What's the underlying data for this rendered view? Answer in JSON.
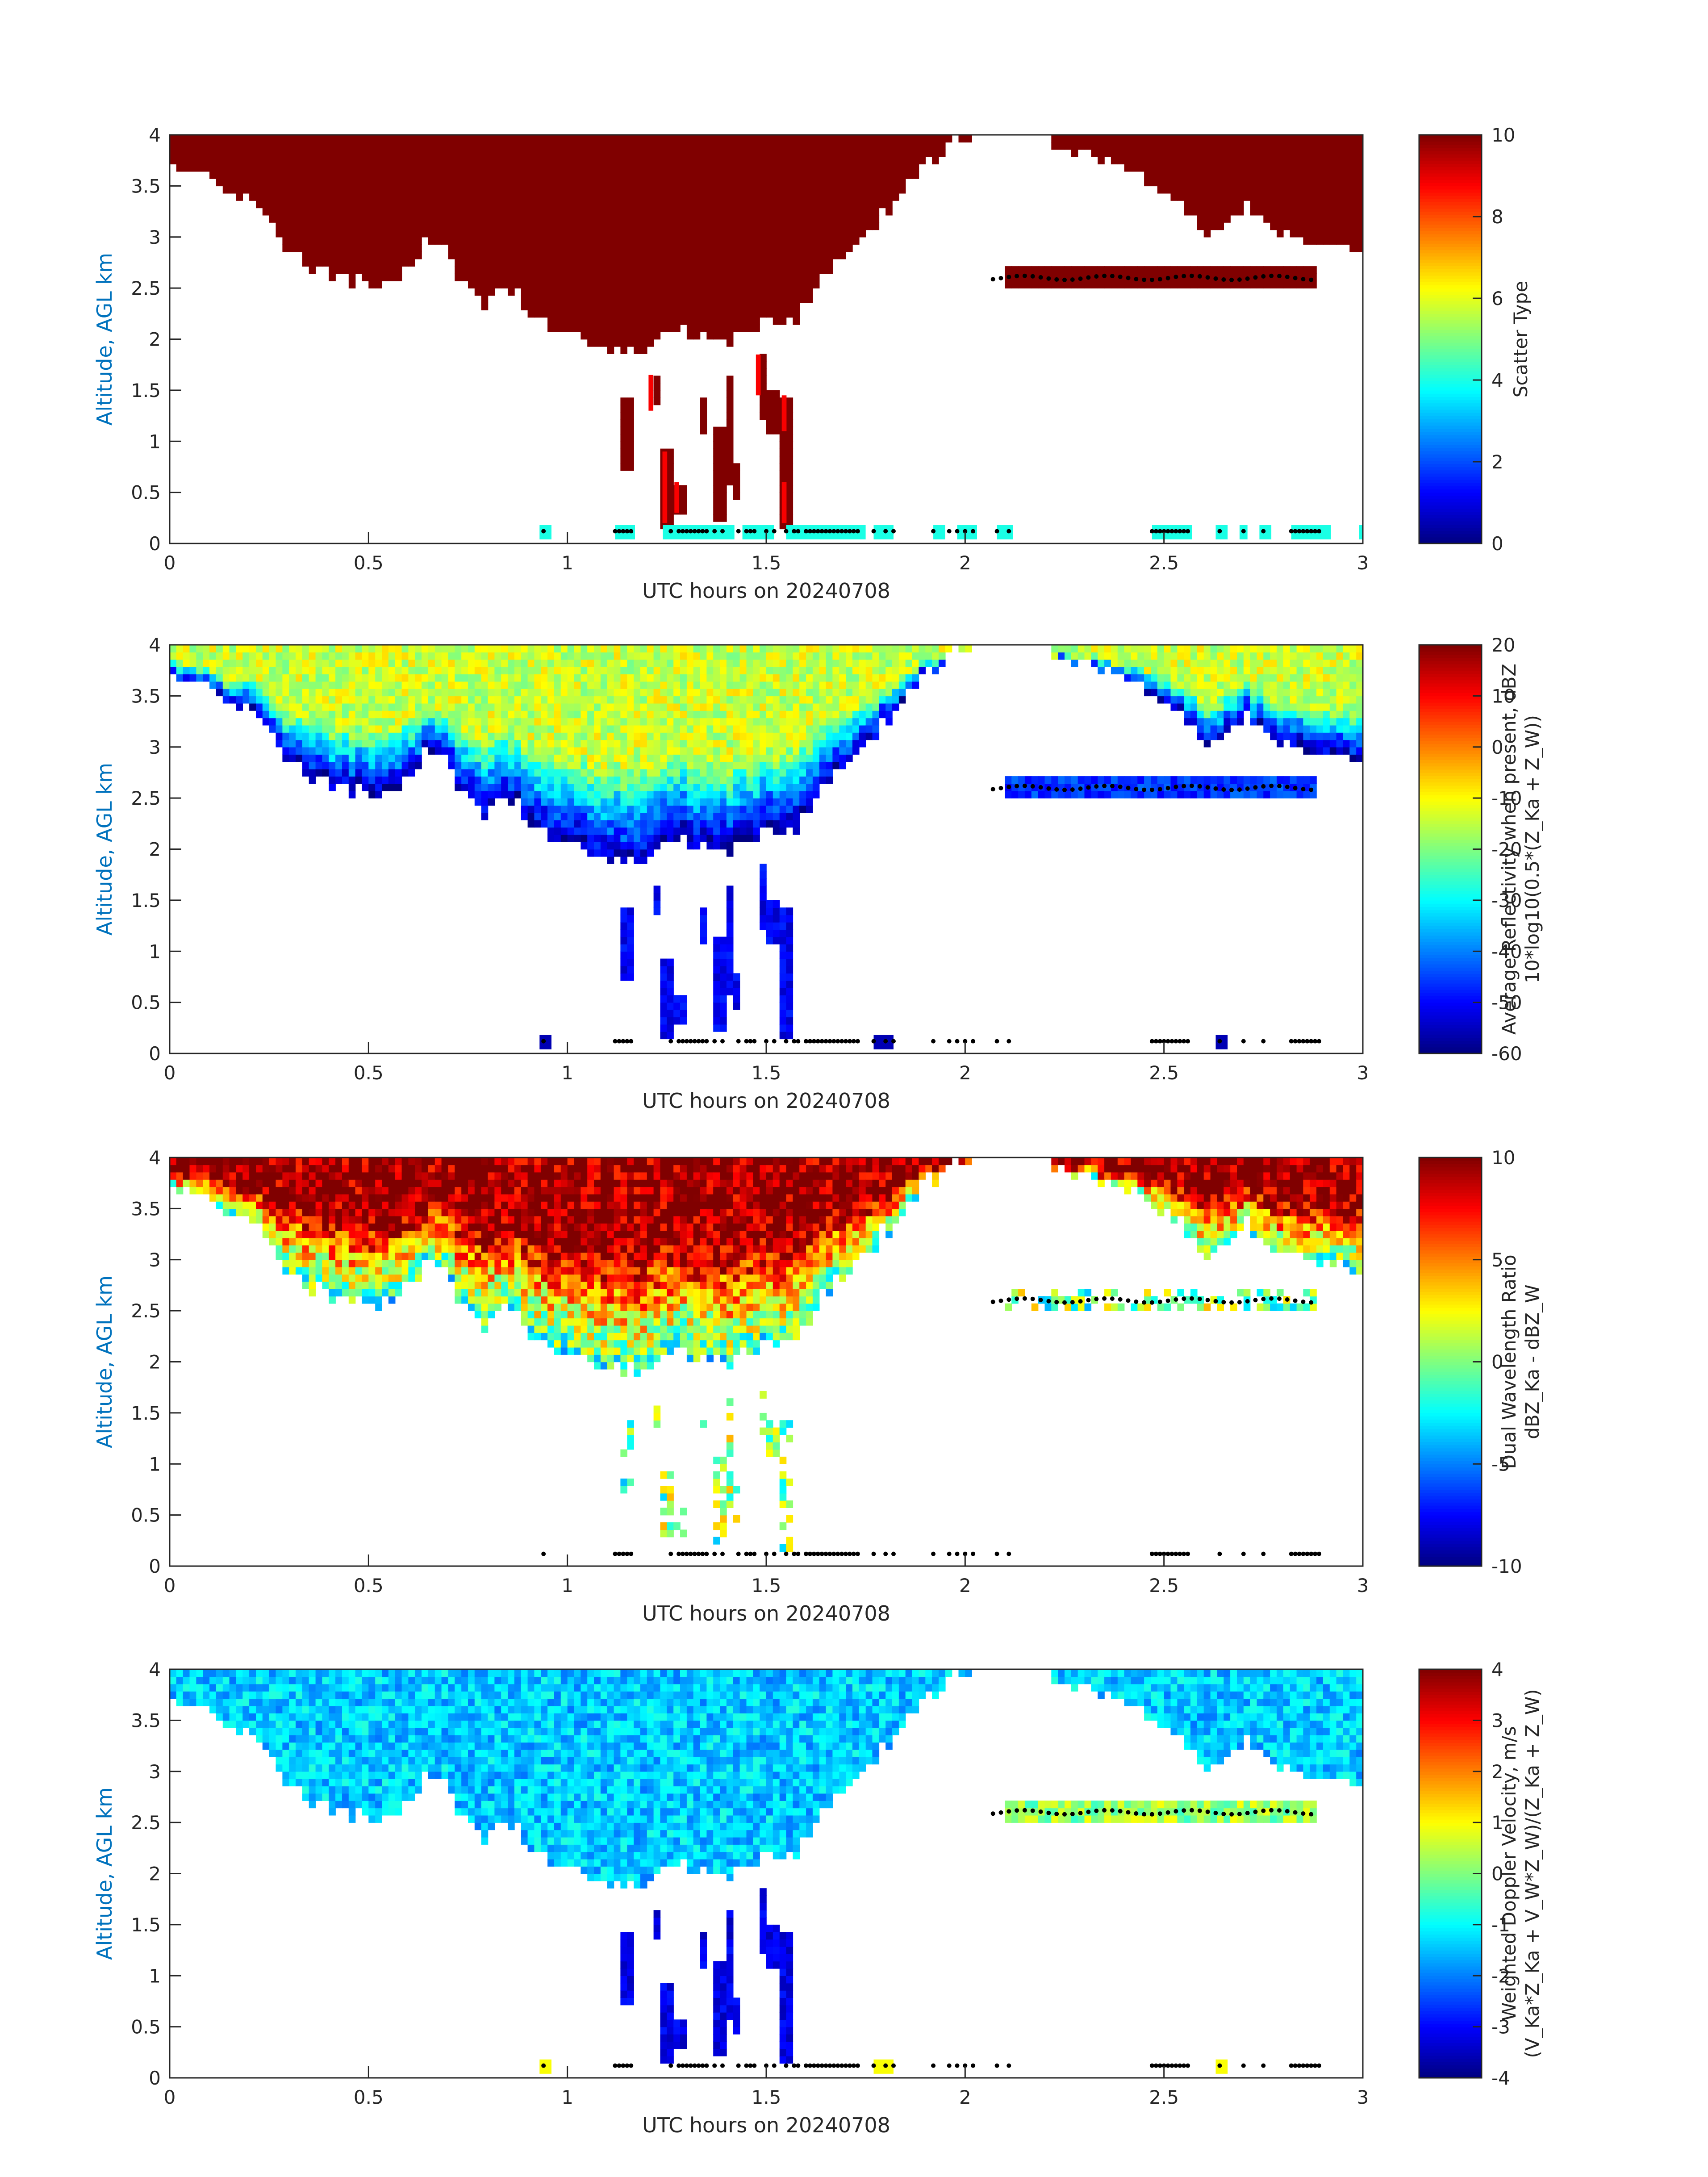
{
  "chart_data": [
    {
      "type": "heatmap",
      "xlabel": "UTC hours on 20240708",
      "ylabel": "Altitude, AGL km",
      "xlim": [
        0,
        3
      ],
      "ylim": [
        0,
        4
      ],
      "xticks": [
        "0",
        "0.5",
        "1",
        "1.5",
        "2",
        "2.5",
        "3"
      ],
      "yticks": [
        "0",
        "0.5",
        "1",
        "1.5",
        "2",
        "2.5",
        "3",
        "3.5",
        "4"
      ],
      "colorbar": {
        "label_lines": [
          "Scatter Type"
        ],
        "range": [
          0,
          10
        ],
        "ticks": [
          "0",
          "2",
          "4",
          "6",
          "8",
          "10"
        ],
        "colormap": "jet"
      },
      "field": "scatter",
      "dominant_value": 4,
      "highlight_value": 8.8
    },
    {
      "type": "heatmap",
      "xlabel": "UTC hours on 20240708",
      "ylabel": "Altitude, AGL km",
      "xlim": [
        0,
        3
      ],
      "ylim": [
        0,
        4
      ],
      "xticks": [
        "0",
        "0.5",
        "1",
        "1.5",
        "2",
        "2.5",
        "3"
      ],
      "yticks": [
        "0",
        "0.5",
        "1",
        "1.5",
        "2",
        "2.5",
        "3",
        "3.5",
        "4"
      ],
      "colorbar": {
        "label_lines": [
          "Average Reflectivity when present, dBZ",
          "10*log10(0.5*(Z_Ka + Z_W))"
        ],
        "range": [
          -60,
          20
        ],
        "ticks": [
          "-60",
          "-50",
          "-40",
          "-30",
          "-20",
          "-10",
          "0",
          "10",
          "20"
        ],
        "colormap": "jet"
      },
      "field": "reflectivity"
    },
    {
      "type": "heatmap",
      "xlabel": "UTC hours on 20240708",
      "ylabel": "Altitude, AGL km",
      "xlim": [
        0,
        3
      ],
      "ylim": [
        0,
        4
      ],
      "xticks": [
        "0",
        "0.5",
        "1",
        "1.5",
        "2",
        "2.5",
        "3"
      ],
      "yticks": [
        "0",
        "0.5",
        "1",
        "1.5",
        "2",
        "2.5",
        "3",
        "3.5",
        "4"
      ],
      "colorbar": {
        "label_lines": [
          "Dual Wavelength Ratio",
          "dBZ_Ka - dBZ_W"
        ],
        "range": [
          -10,
          10
        ],
        "ticks": [
          "-10",
          "-5",
          "0",
          "5",
          "10"
        ],
        "colormap": "jet"
      },
      "field": "dwr"
    },
    {
      "type": "heatmap",
      "xlabel": "UTC hours on 20240708",
      "ylabel": "Altitude, AGL km",
      "xlim": [
        0,
        3
      ],
      "ylim": [
        0,
        4
      ],
      "xticks": [
        "0",
        "0.5",
        "1",
        "1.5",
        "2",
        "2.5",
        "3"
      ],
      "yticks": [
        "0",
        "0.5",
        "1",
        "1.5",
        "2",
        "2.5",
        "3",
        "3.5",
        "4"
      ],
      "colorbar": {
        "label_lines": [
          "Weighted Doppler Velocity, m/s",
          "(V_Ka*Z_Ka + V_W*Z_W)/(Z_Ka + Z_W)"
        ],
        "range": [
          -4,
          4
        ],
        "ticks": [
          "-4",
          "-3",
          "-2",
          "-1",
          "0",
          "1",
          "2",
          "3",
          "4"
        ],
        "colormap": "jet"
      },
      "field": "velocity"
    }
  ],
  "cloud_top_km": [
    [
      0.0,
      3.7
    ],
    [
      0.05,
      3.6
    ],
    [
      0.1,
      3.55
    ],
    [
      0.15,
      3.45
    ],
    [
      0.2,
      3.35
    ],
    [
      0.25,
      3.15
    ],
    [
      0.3,
      2.85
    ],
    [
      0.35,
      2.75
    ],
    [
      0.4,
      2.65
    ],
    [
      0.45,
      2.6
    ],
    [
      0.5,
      2.55
    ],
    [
      0.55,
      2.55
    ],
    [
      0.6,
      2.7
    ],
    [
      0.65,
      3.0
    ],
    [
      0.7,
      2.8
    ],
    [
      0.75,
      2.45
    ],
    [
      0.8,
      2.35
    ],
    [
      0.85,
      2.5
    ],
    [
      0.9,
      2.3
    ],
    [
      0.95,
      2.1
    ],
    [
      1.0,
      2.05
    ],
    [
      1.05,
      2.0
    ],
    [
      1.1,
      1.95
    ],
    [
      1.15,
      1.85
    ],
    [
      1.2,
      1.95
    ],
    [
      1.25,
      2.05
    ],
    [
      1.3,
      2.1
    ],
    [
      1.35,
      2.05
    ],
    [
      1.4,
      1.95
    ],
    [
      1.45,
      2.05
    ],
    [
      1.5,
      2.15
    ],
    [
      1.55,
      2.1
    ],
    [
      1.6,
      2.35
    ],
    [
      1.65,
      2.65
    ],
    [
      1.7,
      2.85
    ],
    [
      1.75,
      3.05
    ],
    [
      1.8,
      3.25
    ],
    [
      1.85,
      3.5
    ],
    [
      1.9,
      3.7
    ],
    [
      1.95,
      3.85
    ],
    [
      2.0,
      3.95
    ],
    [
      2.05,
      4.0
    ]
  ],
  "cloud_top_right_km": [
    [
      2.22,
      3.9
    ],
    [
      2.3,
      3.8
    ],
    [
      2.4,
      3.65
    ],
    [
      2.5,
      3.45
    ],
    [
      2.55,
      3.25
    ],
    [
      2.6,
      3.05
    ],
    [
      2.65,
      3.1
    ],
    [
      2.7,
      3.35
    ],
    [
      2.75,
      3.15
    ],
    [
      2.8,
      3.05
    ],
    [
      2.85,
      3.0
    ],
    [
      2.9,
      2.95
    ],
    [
      2.95,
      2.9
    ],
    [
      3.0,
      2.9
    ]
  ],
  "elevated_layer": {
    "x_start": 2.07,
    "x_end": 2.88,
    "bottom_km": 2.52,
    "top_km": 2.68
  },
  "precip_columns": [
    {
      "x": 1.145,
      "bottom_km": 0.75,
      "top_km": 1.4
    },
    {
      "x": 1.225,
      "bottom_km": 1.35,
      "top_km": 1.65
    },
    {
      "x": 1.245,
      "bottom_km": 0.15,
      "top_km": 0.95
    },
    {
      "x": 1.285,
      "bottom_km": 0.3,
      "top_km": 0.6
    },
    {
      "x": 1.34,
      "bottom_km": 1.05,
      "top_km": 1.45
    },
    {
      "x": 1.38,
      "bottom_km": 0.25,
      "top_km": 1.15
    },
    {
      "x": 1.405,
      "bottom_km": 0.55,
      "top_km": 1.65
    },
    {
      "x": 1.425,
      "bottom_km": 0.45,
      "top_km": 0.8
    },
    {
      "x": 1.49,
      "bottom_km": 1.25,
      "top_km": 1.85
    },
    {
      "x": 1.515,
      "bottom_km": 1.1,
      "top_km": 1.5
    },
    {
      "x": 1.55,
      "bottom_km": 0.15,
      "top_km": 1.4
    }
  ],
  "red_columns": [
    {
      "x": 1.21,
      "bottom_km": 1.3,
      "top_km": 1.65
    },
    {
      "x": 1.245,
      "bottom_km": 0.2,
      "top_km": 0.9
    },
    {
      "x": 1.275,
      "bottom_km": 0.3,
      "top_km": 0.6
    },
    {
      "x": 1.48,
      "bottom_km": 1.45,
      "top_km": 1.85
    },
    {
      "x": 1.545,
      "bottom_km": 0.2,
      "top_km": 0.6
    },
    {
      "x": 1.545,
      "bottom_km": 1.1,
      "top_km": 1.45
    }
  ],
  "surface_segments": [
    [
      0.93,
      0.96
    ],
    [
      1.12,
      1.17
    ],
    [
      1.24,
      1.42
    ],
    [
      1.44,
      1.52
    ],
    [
      1.55,
      1.75
    ],
    [
      1.77,
      1.82
    ],
    [
      1.92,
      1.95
    ],
    [
      1.98,
      2.03
    ],
    [
      2.08,
      2.12
    ],
    [
      2.47,
      2.57
    ],
    [
      2.63,
      2.66
    ],
    [
      2.69,
      2.71
    ],
    [
      2.74,
      2.77
    ],
    [
      2.82,
      2.92
    ],
    [
      2.99,
      3.0
    ]
  ],
  "surface_dots": [
    0.94,
    1.12,
    1.13,
    1.14,
    1.15,
    1.16,
    1.26,
    1.28,
    1.29,
    1.3,
    1.31,
    1.32,
    1.33,
    1.34,
    1.35,
    1.37,
    1.39,
    1.43,
    1.45,
    1.46,
    1.47,
    1.5,
    1.52,
    1.55,
    1.57,
    1.58,
    1.6,
    1.61,
    1.62,
    1.63,
    1.64,
    1.65,
    1.66,
    1.67,
    1.68,
    1.69,
    1.7,
    1.71,
    1.72,
    1.73,
    1.77,
    1.8,
    1.82,
    1.92,
    1.96,
    1.98,
    2.0,
    2.02,
    2.08,
    2.11,
    2.47,
    2.48,
    2.49,
    2.5,
    2.51,
    2.52,
    2.53,
    2.54,
    2.55,
    2.56,
    2.64,
    2.7,
    2.75,
    2.82,
    2.83,
    2.84,
    2.85,
    2.86,
    2.87,
    2.88,
    2.89
  ],
  "layer_dots_y_km": 2.6
}
